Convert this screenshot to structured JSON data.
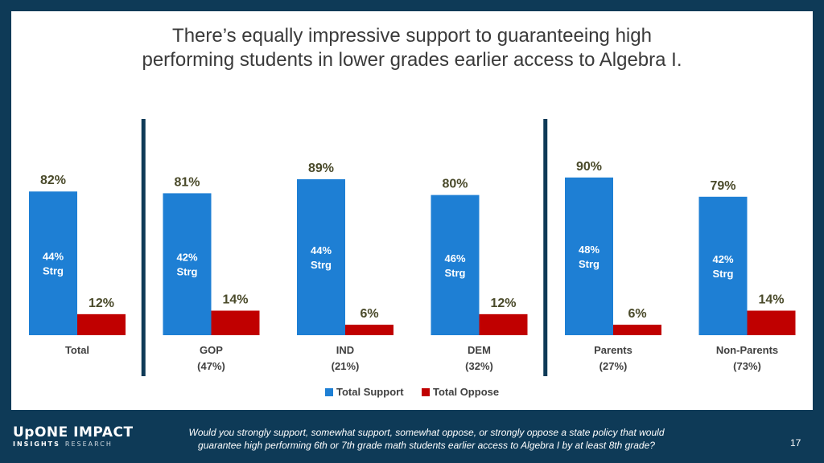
{
  "slide": {
    "title_line1": "There’s equally impressive support to guaranteeing high",
    "title_line2": "performing students in lower grades earlier access to Algebra I.",
    "question_line1": "Would you strongly support, somewhat support, somewhat oppose, or strongly oppose a state policy that would",
    "question_line2": "guarantee high performing 6th or 7th grade math students earlier access to Algebra I by at least 8th grade?",
    "page_number": "17",
    "logo": {
      "primary": "UpONE IMPACT",
      "secondary_a": "INSIGHTS",
      "secondary_b": "RESEARCH"
    }
  },
  "colors": {
    "background": "#0e3a57",
    "support": "#1e7fd4",
    "oppose": "#c00000",
    "divider": "#0e3a57",
    "value_label": "#4a4a2a"
  },
  "chart_data": {
    "type": "bar",
    "categories": [
      {
        "label": "Total",
        "sublabel": ""
      },
      {
        "label": "GOP",
        "sublabel": "(47%)"
      },
      {
        "label": "IND",
        "sublabel": "(21%)"
      },
      {
        "label": "DEM",
        "sublabel": "(32%)"
      },
      {
        "label": "Parents",
        "sublabel": "(27%)"
      },
      {
        "label": "Non-Parents",
        "sublabel": "(73%)"
      }
    ],
    "series": [
      {
        "name": "Total Support",
        "values": [
          82,
          81,
          89,
          80,
          90,
          79
        ],
        "strong": [
          "44%",
          "42%",
          "44%",
          "46%",
          "48%",
          "42%"
        ],
        "strong_suffix": "Strg"
      },
      {
        "name": "Total Oppose",
        "values": [
          12,
          14,
          6,
          12,
          6,
          14
        ]
      }
    ],
    "value_suffix": "%",
    "ylim": [
      0,
      100
    ],
    "group_dividers_after": [
      0,
      3
    ],
    "legend_position": "bottom",
    "grid": false
  }
}
